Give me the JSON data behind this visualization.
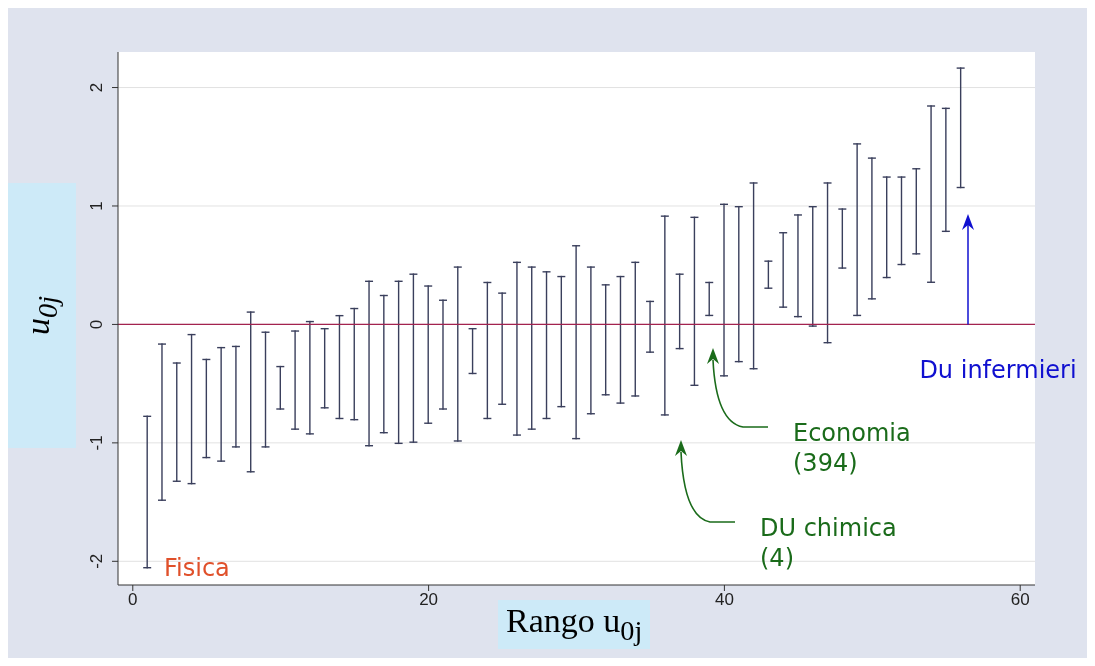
{
  "chart_data": {
    "type": "bar",
    "xlabel": "Rango u$_{0j}$",
    "ylabel": "u$_{0j}$",
    "grid": "y",
    "x": [
      1,
      2,
      3,
      4,
      5,
      6,
      7,
      8,
      9,
      10,
      11,
      12,
      13,
      14,
      15,
      16,
      17,
      18,
      19,
      20,
      21,
      22,
      23,
      24,
      25,
      26,
      27,
      28,
      29,
      30,
      31,
      32,
      33,
      34,
      35,
      36,
      37,
      38,
      39,
      40,
      41,
      42,
      43,
      44,
      45,
      46,
      47,
      48,
      49,
      50,
      51,
      52,
      53,
      54,
      55,
      56
    ],
    "series": [
      {
        "color": "#3a3f5c",
        "base": [
          -2.06,
          -1.49,
          -1.33,
          -1.35,
          -1.13,
          -1.16,
          -1.04,
          -1.25,
          -1.04,
          -0.72,
          -0.89,
          -0.93,
          -0.71,
          -0.8,
          -0.81,
          -1.03,
          -0.92,
          -1.01,
          -1.0,
          -0.84,
          -0.72,
          -0.99,
          -0.42,
          -0.8,
          -0.68,
          -0.94,
          -0.89,
          -0.8,
          -0.7,
          -0.97,
          -0.76,
          -0.6,
          -0.67,
          -0.61,
          -0.24,
          -0.77,
          -0.21,
          -0.52,
          0.07,
          -0.44,
          -0.32,
          -0.38,
          0.3,
          0.14,
          0.06,
          -0.02,
          -0.16,
          0.47,
          0.07,
          0.21,
          0.39,
          0.5,
          0.59,
          0.35,
          0.78,
          1.15
        ],
        "values": [
          1.29,
          1.33,
          1.01,
          1.27,
          0.84,
          0.97,
          0.86,
          1.36,
          0.98,
          0.37,
          0.84,
          0.96,
          0.68,
          0.88,
          0.95,
          1.4,
          1.17,
          1.38,
          1.43,
          1.17,
          0.93,
          1.48,
          0.39,
          1.16,
          0.95,
          1.47,
          1.38,
          1.25,
          1.11,
          1.64,
          1.25,
          0.94,
          1.08,
          1.14,
          0.44,
          1.69,
          0.64,
          1.43,
          0.29,
          1.46,
          1.32,
          1.58,
          0.24,
          0.64,
          0.87,
          1.02,
          1.36,
          0.51,
          1.46,
          1.2,
          0.86,
          0.75,
          0.73,
          1.5,
          1.05,
          1.02
        ]
      }
    ],
    "xlim": [
      -1,
      61
    ],
    "xticks": [
      0,
      20,
      40,
      60
    ],
    "ylim": [
      -2.2,
      2.3
    ],
    "yticks": [
      -2,
      -1,
      0,
      1,
      2
    ],
    "ref_lines": [
      {
        "axis": "y",
        "value": 0,
        "color": "#a3234f"
      }
    ],
    "annotations": [
      "Fisica",
      "Du infermieri",
      "Economia\n(394)",
      "DU chimica\n(4)"
    ]
  }
}
